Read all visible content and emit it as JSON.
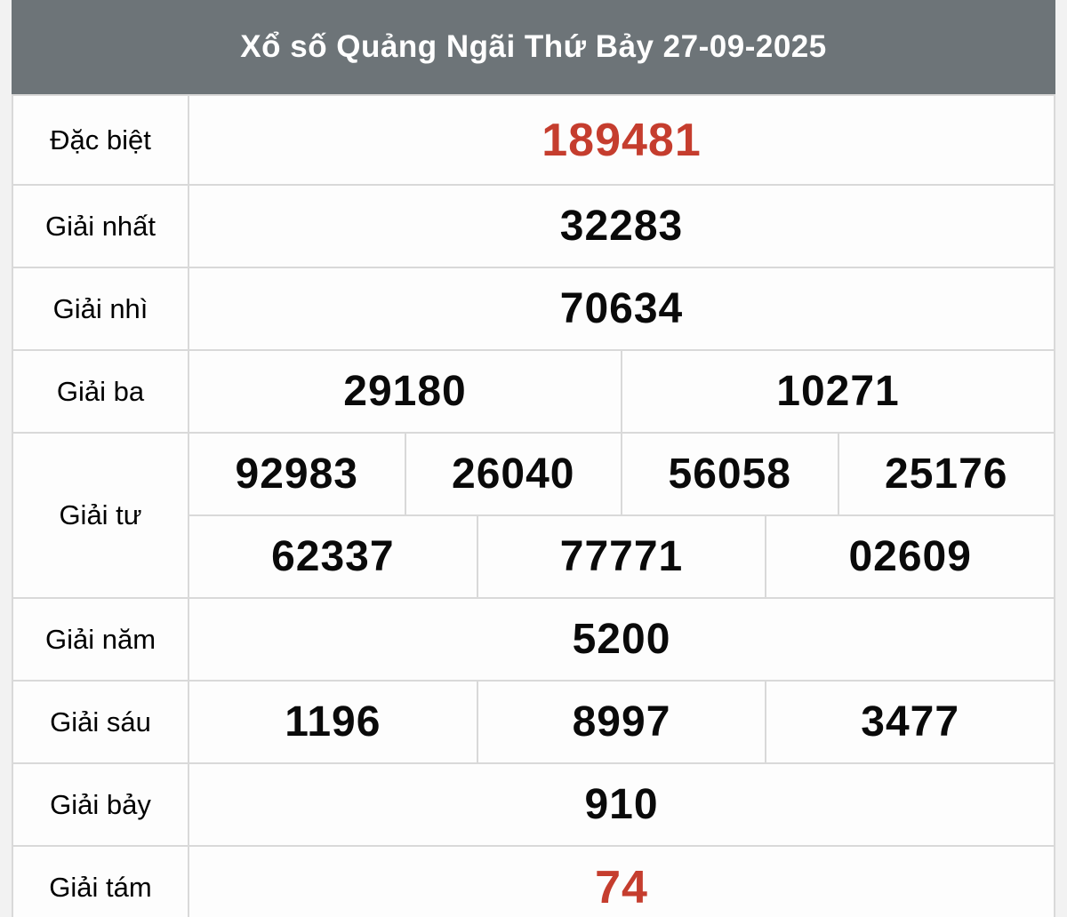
{
  "page": {
    "title": "Xổ số Quảng Ngãi Thứ Bảy 27-09-2025"
  },
  "colors": {
    "header_bg": "#6d7478",
    "header_text": "#ffffff",
    "page_margin_bg": "#f2f2f2",
    "cell_bg": "#fdfdfd",
    "border": "#d9d9d9",
    "number_color": "#0a0a0a",
    "label_color": "#000000",
    "highlight_red": "#c53d2e"
  },
  "table": {
    "rows": [
      {
        "id": "dac-biet",
        "label": "Đặc biệt",
        "highlight": true,
        "value_rows": [
          [
            "189481"
          ]
        ]
      },
      {
        "id": "giai-nhat",
        "label": "Giải nhất",
        "highlight": false,
        "value_rows": [
          [
            "32283"
          ]
        ]
      },
      {
        "id": "giai-nhi",
        "label": "Giải nhì",
        "highlight": false,
        "value_rows": [
          [
            "70634"
          ]
        ]
      },
      {
        "id": "giai-ba",
        "label": "Giải ba",
        "highlight": false,
        "value_rows": [
          [
            "29180",
            "10271"
          ]
        ]
      },
      {
        "id": "giai-tu",
        "label": "Giải tư",
        "highlight": false,
        "value_rows": [
          [
            "92983",
            "26040",
            "56058",
            "25176"
          ],
          [
            "62337",
            "77771",
            "02609"
          ]
        ]
      },
      {
        "id": "giai-nam",
        "label": "Giải năm",
        "highlight": false,
        "value_rows": [
          [
            "5200"
          ]
        ]
      },
      {
        "id": "giai-sau",
        "label": "Giải sáu",
        "highlight": false,
        "value_rows": [
          [
            "1196",
            "8997",
            "3477"
          ]
        ]
      },
      {
        "id": "giai-bay",
        "label": "Giải bảy",
        "highlight": false,
        "value_rows": [
          [
            "910"
          ]
        ]
      },
      {
        "id": "giai-tam",
        "label": "Giải tám",
        "highlight": true,
        "value_rows": [
          [
            "74"
          ]
        ]
      }
    ]
  }
}
